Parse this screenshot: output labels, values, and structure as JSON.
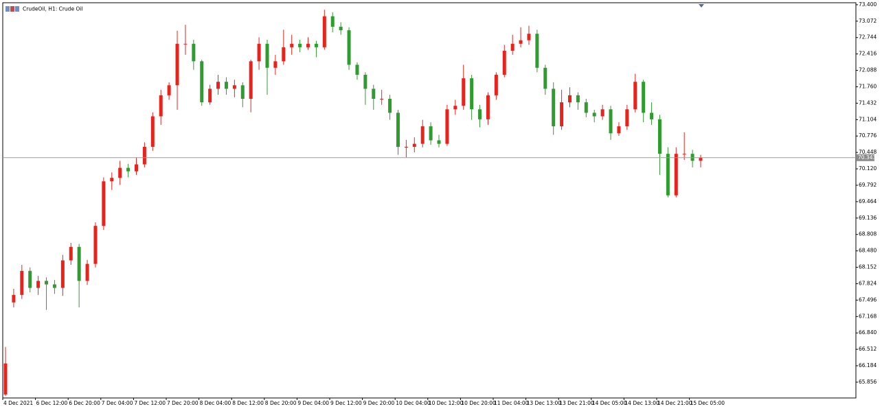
{
  "chart_data": {
    "type": "candlestick",
    "title": "CrudeOil, H1:  Crude Oil",
    "up_color": "#e8231c",
    "down_color": "#2f9c2f",
    "grid": false,
    "ylim": [
      65.54,
      73.44
    ],
    "yticks": [
      65.856,
      66.184,
      66.512,
      {
        "value": 66.84,
        "label": "66.840"
      },
      67.168,
      67.496,
      67.824,
      68.152,
      {
        "value": 68.48,
        "label": "68.480"
      },
      68.808,
      69.136,
      69.464,
      69.792,
      {
        "value": 70.12,
        "label": "70.120"
      },
      70.448,
      70.776,
      71.104,
      71.432,
      {
        "value": 71.76,
        "label": "71.760"
      },
      72.088,
      72.416,
      72.744,
      73.072,
      {
        "value": 73.4,
        "label": "73.400"
      }
    ],
    "x_labels": [
      "4 Dec 2021",
      "6 Dec 12:00",
      "6 Dec 20:00",
      "7 Dec 04:00",
      "7 Dec 12:00",
      "7 Dec 20:00",
      "8 Dec 04:00",
      "8 Dec 12:00",
      "8 Dec 20:00",
      "9 Dec 04:00",
      "9 Dec 12:00",
      "9 Dec 20:00",
      "10 Dec 04:00",
      "10 Dec 12:00",
      "10 Dec 20:00",
      "11 Dec 04:00",
      "13 Dec 13:00",
      "13 Dec 21:00",
      "14 Dec 05:00",
      "14 Dec 13:00",
      "14 Dec 21:00",
      "15 Dec 05:00"
    ],
    "open": [
      65.61,
      67.45,
      67.6,
      68.08,
      67.74,
      67.88,
      67.81,
      67.74,
      68.29,
      68.56,
      67.88,
      68.22,
      68.98,
      69.87,
      69.94,
      70.14,
      70.07,
      70.21,
      70.56,
      71.17,
      71.59,
      71.79,
      72.62,
      72.62,
      72.27,
      71.45,
      71.72,
      71.86,
      71.72,
      71.79,
      71.52,
      72.27,
      72.62,
      72.14,
      72.27,
      72.55,
      72.62,
      72.55,
      72.62,
      72.55,
      73.17,
      72.96,
      72.89,
      72.2,
      72.0,
      71.72,
      71.52,
      71.52,
      71.24,
      70.56,
      70.56,
      70.62,
      70.97,
      70.69,
      70.62,
      71.31,
      71.38,
      71.93,
      71.31,
      71.11,
      71.59,
      72.0,
      72.48,
      72.62,
      72.69,
      72.82,
      72.14,
      71.72,
      70.97,
      71.45,
      71.59,
      71.45,
      71.24,
      71.17,
      71.31,
      70.83,
      70.97,
      71.31,
      71.86,
      71.24,
      71.11,
      70.42,
      69.59,
      70.42,
      70.42,
      70.28
    ],
    "high": [
      66.56,
      67.72,
      68.2,
      68.15,
      67.98,
      67.95,
      67.9,
      68.4,
      68.64,
      68.62,
      68.3,
      69.05,
      69.95,
      70.05,
      70.28,
      70.22,
      70.35,
      70.65,
      71.25,
      71.7,
      71.85,
      72.88,
      73.0,
      72.7,
      72.3,
      71.8,
      72.0,
      71.95,
      71.9,
      71.85,
      72.3,
      72.75,
      72.7,
      72.4,
      72.9,
      72.8,
      72.7,
      72.75,
      72.68,
      73.3,
      73.25,
      73.05,
      72.95,
      72.25,
      72.05,
      71.8,
      71.7,
      71.6,
      71.3,
      70.7,
      70.75,
      71.1,
      71.05,
      70.8,
      71.4,
      71.5,
      72.2,
      72.0,
      71.4,
      71.65,
      72.05,
      72.6,
      72.8,
      72.95,
      72.98,
      72.9,
      72.2,
      71.85,
      71.7,
      71.75,
      71.65,
      71.52,
      71.3,
      71.4,
      71.38,
      71.05,
      71.4,
      72.02,
      71.9,
      71.45,
      71.2,
      70.55,
      70.55,
      70.85,
      70.5,
      70.4
    ],
    "low": [
      65.58,
      67.35,
      67.52,
      67.65,
      67.6,
      67.3,
      67.62,
      67.58,
      68.2,
      67.35,
      67.8,
      68.15,
      68.9,
      69.7,
      69.8,
      69.95,
      70.0,
      70.15,
      70.48,
      71.0,
      71.5,
      71.3,
      72.4,
      72.1,
      71.38,
      71.4,
      71.6,
      71.6,
      71.55,
      71.35,
      71.25,
      72.1,
      71.6,
      72.0,
      72.2,
      72.4,
      72.45,
      72.5,
      72.35,
      72.5,
      72.85,
      72.8,
      72.1,
      71.9,
      71.4,
      71.3,
      71.4,
      71.1,
      70.4,
      70.35,
      70.45,
      70.55,
      70.6,
      70.55,
      70.58,
      71.2,
      71.3,
      71.1,
      70.95,
      71.0,
      71.5,
      71.95,
      72.4,
      72.55,
      72.6,
      72.05,
      71.6,
      70.8,
      70.9,
      71.35,
      71.3,
      71.15,
      71.05,
      71.1,
      70.7,
      70.78,
      70.9,
      71.25,
      71.05,
      71.0,
      70.0,
      69.55,
      69.55,
      70.3,
      70.15,
      70.15
    ],
    "close": [
      66.23,
      67.6,
      68.08,
      67.74,
      67.88,
      67.81,
      67.74,
      68.29,
      68.56,
      67.88,
      68.22,
      68.98,
      69.87,
      69.94,
      70.14,
      70.07,
      70.21,
      70.56,
      71.17,
      71.59,
      71.79,
      72.62,
      72.62,
      72.27,
      71.45,
      71.72,
      71.86,
      71.72,
      71.79,
      71.52,
      72.27,
      72.62,
      72.14,
      72.27,
      72.55,
      72.62,
      72.55,
      72.62,
      72.55,
      73.17,
      72.96,
      72.89,
      72.2,
      72.0,
      71.72,
      71.52,
      71.52,
      71.24,
      70.56,
      70.56,
      70.62,
      70.97,
      70.69,
      70.62,
      71.31,
      71.38,
      71.93,
      71.31,
      71.11,
      71.59,
      72.0,
      72.48,
      72.62,
      72.69,
      72.82,
      72.14,
      71.72,
      70.97,
      71.45,
      71.59,
      71.45,
      71.24,
      71.17,
      71.31,
      70.83,
      70.97,
      71.31,
      71.86,
      71.24,
      71.11,
      70.42,
      69.59,
      70.42,
      70.42,
      70.28,
      70.343
    ]
  }
}
